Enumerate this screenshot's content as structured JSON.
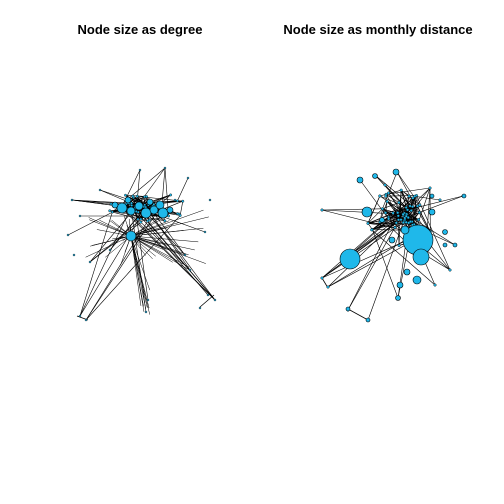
{
  "panels": [
    {
      "title": "Node size as degree"
    },
    {
      "title": "Node size as monthly distance"
    }
  ],
  "colors": {
    "node_fill": "#1FB8EA",
    "edge": "#000000",
    "node_stroke": "#000000"
  }
}
